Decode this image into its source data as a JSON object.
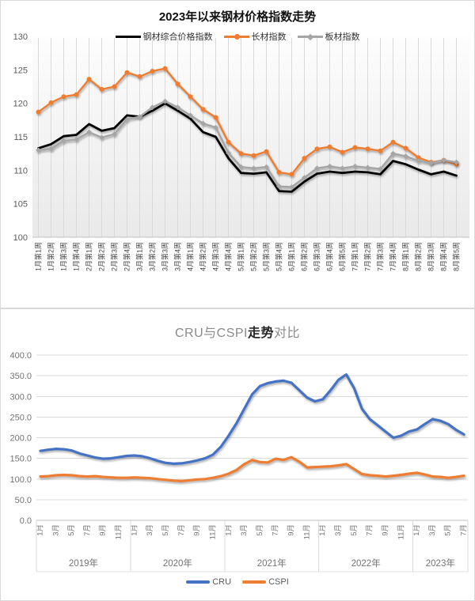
{
  "chart_data": [
    {
      "type": "line",
      "title": "2023年以来钢材价格指数走势",
      "ylim": [
        100,
        130
      ],
      "ytick_step": 5,
      "y_ticks": [
        "100",
        "105",
        "110",
        "115",
        "120",
        "125",
        "130"
      ],
      "grid": "vertical",
      "legend_position": "top",
      "categories": [
        "1月第1周",
        "1月第2周",
        "1月第3周",
        "1月第4周",
        "2月第1周",
        "2月第2周",
        "2月第3周",
        "2月第4周",
        "3月第1周",
        "3月第2周",
        "3月第3周",
        "3月第4周",
        "4月第1周",
        "4月第2周",
        "4月第3周",
        "4月第4周",
        "5月第1周",
        "5月第2周",
        "5月第3周",
        "5月第4周",
        "6月第1周",
        "6月第2周",
        "6月第3周",
        "6月第4周",
        "6月第5周",
        "7月第1周",
        "7月第2周",
        "7月第3周",
        "7月第4周",
        "8月第1周",
        "8月第2周",
        "8月第3周",
        "8月第4周",
        "8月第5周"
      ],
      "series": [
        {
          "name": "钢材综合价格指数",
          "color": "#000000",
          "marker": "none",
          "values": [
            113.3,
            113.9,
            115.1,
            115.3,
            116.9,
            115.9,
            116.3,
            118.2,
            118.0,
            118.9,
            120.0,
            118.9,
            117.7,
            115.7,
            115.0,
            111.8,
            109.6,
            109.5,
            109.7,
            106.9,
            106.8,
            108.3,
            109.5,
            109.8,
            109.6,
            109.8,
            109.7,
            109.4,
            111.4,
            110.9,
            110.1,
            109.4,
            109.8,
            109.2
          ]
        },
        {
          "name": "长材指数",
          "color": "#ED7D31",
          "marker": "circle",
          "values": [
            118.7,
            120.1,
            121.0,
            121.3,
            123.6,
            122.1,
            122.5,
            124.6,
            124.0,
            124.8,
            125.2,
            122.9,
            121.0,
            119.1,
            117.9,
            114.2,
            112.5,
            112.2,
            112.8,
            109.7,
            109.4,
            111.8,
            113.2,
            113.5,
            112.7,
            113.4,
            113.2,
            112.9,
            114.2,
            113.3,
            111.9,
            111.2,
            111.5,
            110.9
          ]
        },
        {
          "name": "板材指数",
          "color": "#A5A5A5",
          "marker": "diamond",
          "values": [
            113.0,
            113.2,
            114.4,
            114.6,
            115.7,
            114.9,
            115.4,
            117.6,
            118.0,
            119.4,
            120.3,
            119.4,
            118.2,
            117.0,
            116.4,
            112.6,
            110.5,
            110.3,
            110.5,
            107.6,
            107.5,
            108.9,
            110.3,
            110.6,
            110.3,
            110.6,
            110.4,
            110.2,
            112.5,
            112.1,
            111.4,
            111.1,
            111.5,
            111.2
          ]
        }
      ]
    },
    {
      "type": "line",
      "title": "CRU与CSPI走势对比",
      "title_prefix": "CRU与CSPI",
      "title_mid": "走势",
      "title_suffix": "对比",
      "ylim": [
        0,
        400
      ],
      "ytick_step": 50,
      "y_ticks": [
        "0.0",
        "50.0",
        "100.0",
        "150.0",
        "200.0",
        "250.0",
        "300.0",
        "350.0",
        "400.0"
      ],
      "grid": "horizontal",
      "legend_position": "bottom",
      "year_groups": [
        {
          "label": "2019年",
          "n_months": 12,
          "month_ticks": [
            "1月",
            "3月",
            "5月",
            "7月",
            "9月",
            "11月"
          ]
        },
        {
          "label": "2020年",
          "n_months": 12,
          "month_ticks": [
            "1月",
            "3月",
            "5月",
            "7月",
            "9月",
            "11月"
          ]
        },
        {
          "label": "2021年",
          "n_months": 12,
          "month_ticks": [
            "1月",
            "3月",
            "5月",
            "7月",
            "9月",
            "11月"
          ]
        },
        {
          "label": "2022年",
          "n_months": 12,
          "month_ticks": [
            "1月",
            "3月",
            "5月",
            "7月",
            "9月",
            "11月"
          ]
        },
        {
          "label": "2023年",
          "n_months": 7,
          "month_ticks": [
            "1月",
            "3月",
            "5月",
            "7月"
          ]
        }
      ],
      "series": [
        {
          "name": "CRU",
          "color": "#4472C4",
          "values": [
            168,
            171,
            173,
            172,
            169,
            162,
            157,
            152,
            149,
            150,
            153,
            156,
            157,
            155,
            150,
            144,
            139,
            137,
            138,
            141,
            145,
            150,
            159,
            178,
            205,
            235,
            270,
            305,
            325,
            332,
            336,
            338,
            333,
            315,
            297,
            288,
            293,
            315,
            340,
            353,
            320,
            270,
            245,
            230,
            215,
            200,
            205,
            215,
            220,
            233,
            245,
            241,
            233,
            219,
            208
          ]
        },
        {
          "name": "CSPI",
          "color": "#ED7D31",
          "values": [
            106,
            107,
            109,
            110,
            109,
            107,
            106,
            107,
            105,
            104,
            103,
            103,
            104,
            103,
            102,
            100,
            98,
            96,
            95,
            97,
            99,
            100,
            103,
            107,
            113,
            122,
            136,
            146,
            141,
            140,
            149,
            146,
            153,
            142,
            128,
            129,
            130,
            131,
            133,
            136,
            124,
            112,
            109,
            108,
            106,
            108,
            110,
            113,
            115,
            111,
            106,
            105,
            103,
            105,
            108
          ]
        }
      ]
    }
  ],
  "colors": {
    "composite_index": "#000000",
    "long_products": "#ED7D31",
    "plate_products": "#A5A5A5",
    "cru": "#4472C4",
    "cspi": "#ED7D31",
    "gridline": "#d9d9d9",
    "axis_line": "#bfbfbf"
  }
}
